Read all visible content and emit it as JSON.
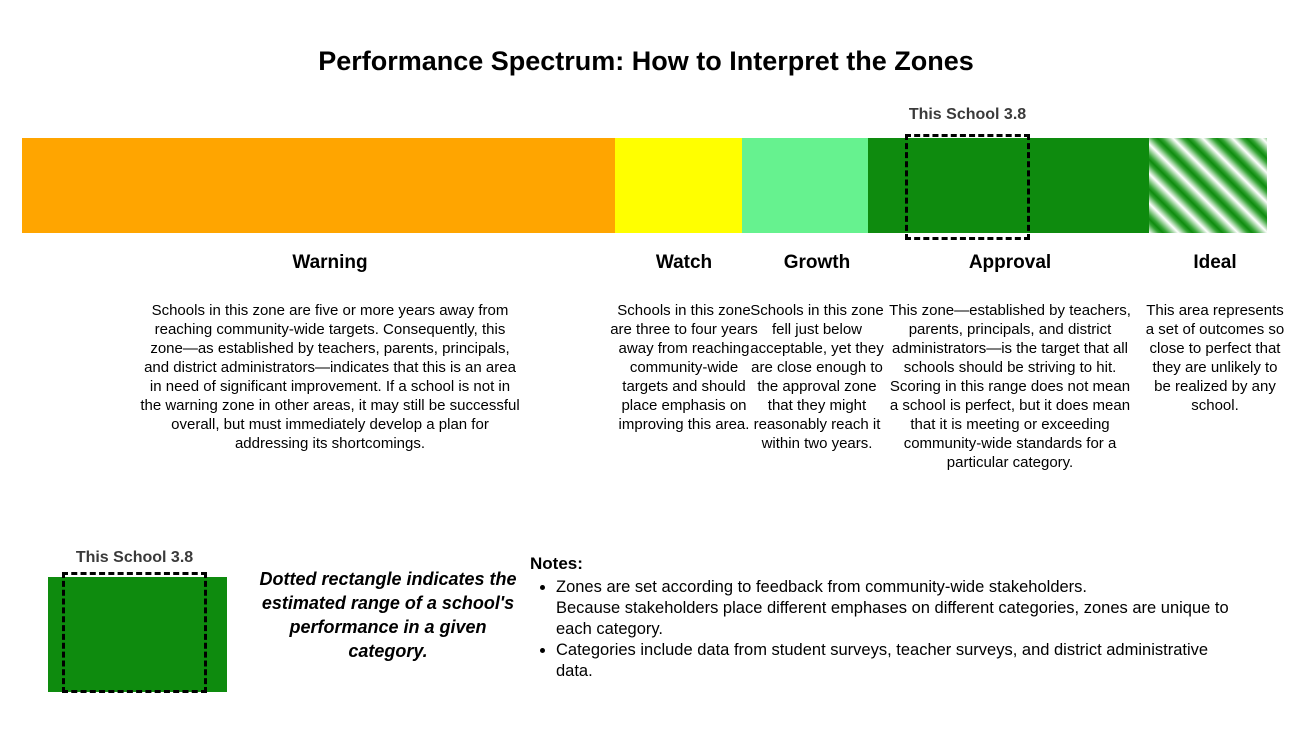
{
  "title": "Performance Spectrum: How to Interpret the Zones",
  "bar": {
    "marker_label": "This School 3.8"
  },
  "zones": [
    {
      "name": "Warning",
      "color": "#FFA500",
      "description": "Schools in this zone are five or more years away from reaching community-wide targets. Consequently, this zone—as established by teachers, parents, principals, and district administrators—indicates that this is an area in need of significant improvement. If a school is not in the warning zone in other areas, it may still be successful overall, but must immediately develop a plan for addressing its shortcomings."
    },
    {
      "name": "Watch",
      "color": "#FFFF00",
      "description": "Schools in this zone are three to four years away from reaching community-wide targets and should place emphasis on improving this area."
    },
    {
      "name": "Growth",
      "color": "#66F28F",
      "description": "Schools in this zone fell just below acceptable, yet they are close enough to the approval zone that they might reasonably reach it within two years."
    },
    {
      "name": "Approval",
      "color": "#0E8B0E",
      "description": "This zone—established by teachers, parents, principals, and district administrators—is the target that all schools should be striving to hit. Scoring in this range does not mean a school is perfect, but it does mean that it is meeting or exceeding community-wide standards for a particular category."
    },
    {
      "name": "Ideal",
      "color": "#0E8B0E",
      "pattern": "diagonal-green-white-stripes",
      "description": "This area represents a set of outcomes so close to perfect that they are unlikely to be realized by any school."
    }
  ],
  "legend": {
    "marker_label": "This School 3.8",
    "swatch_color": "#0E8B0E",
    "caption": "Dotted rectangle indicates the estimated range of a school's performance in a given category."
  },
  "notes": {
    "heading": "Notes:",
    "items": [
      "Zones are set according to feedback from community-wide stakeholders.\nBecause stakeholders place different emphases on different categories, zones are unique to each category.",
      "Categories include data from student surveys, teacher surveys, and district administrative data."
    ]
  }
}
